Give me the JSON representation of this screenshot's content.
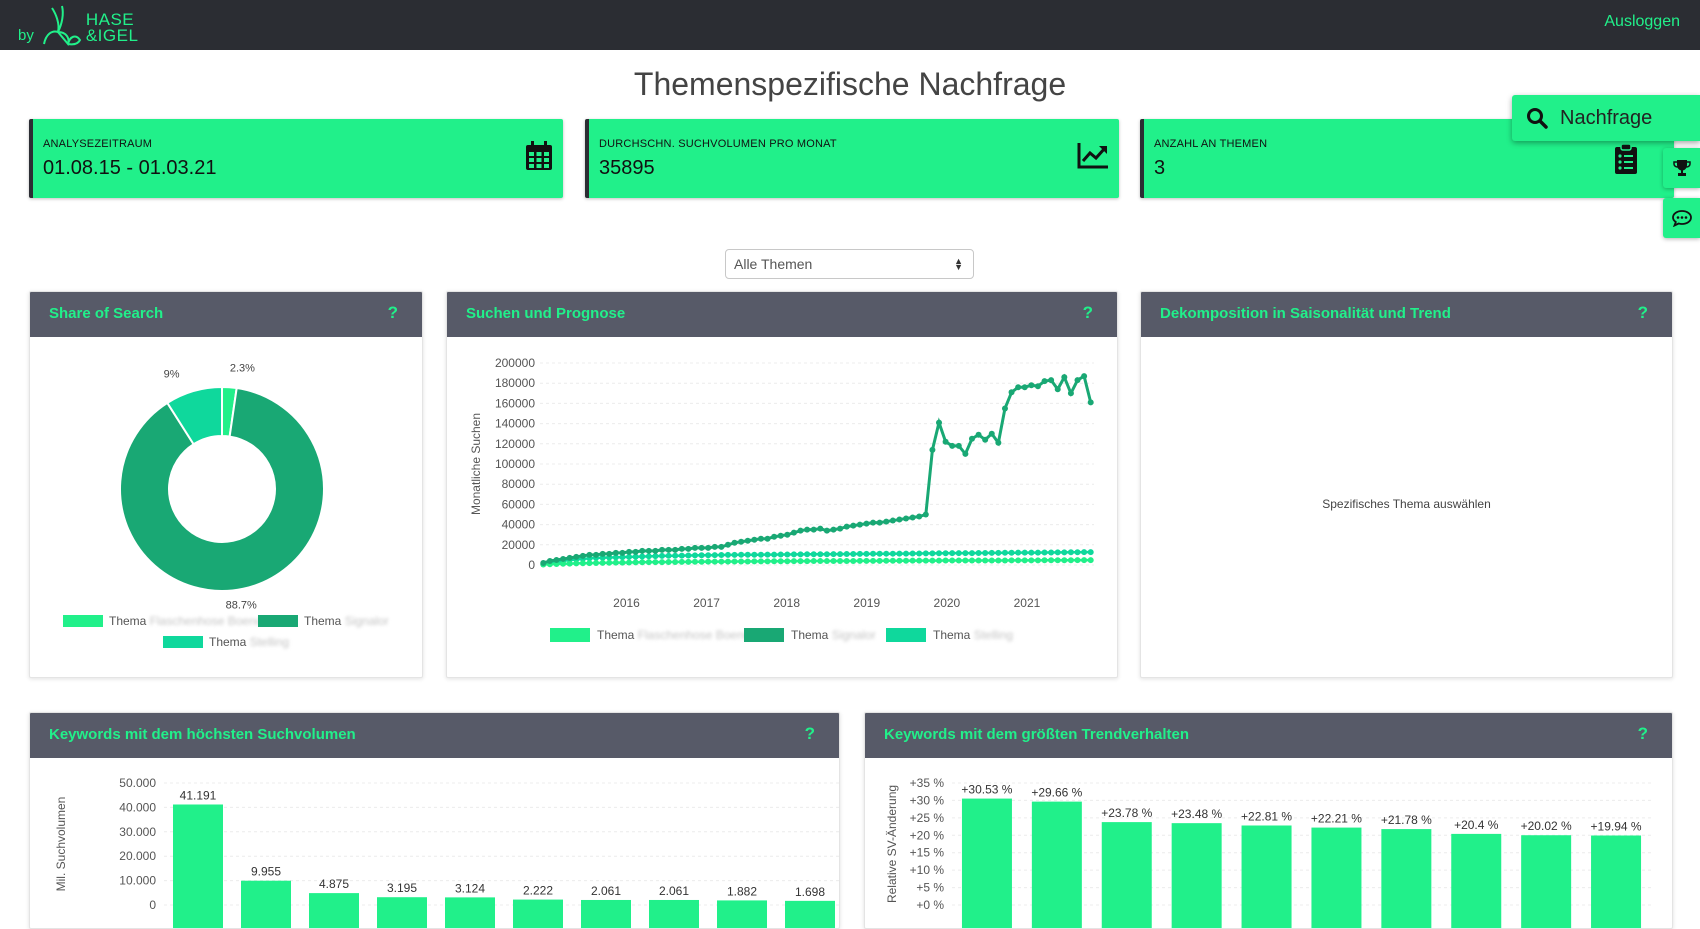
{
  "header": {
    "by": "by",
    "brand_line1": "HASE",
    "brand_line2": "&IGEL",
    "logout": "Ausloggen"
  },
  "page_title": "Themenspezifische Nachfrage",
  "kpis": [
    {
      "label": "ANALYSEZEITRAUM",
      "value": "01.08.15 - 01.03.21",
      "icon": "calendar-icon"
    },
    {
      "label": "DURCHSCHN. SUCHVOLUMEN PRO MONAT",
      "value": "35895",
      "icon": "chart-line-icon"
    },
    {
      "label": "ANZAHL AN THEMEN",
      "value": "3",
      "icon": "clipboard-list-icon"
    }
  ],
  "search_pill": {
    "label": "Nachfrage",
    "icon": "search-icon"
  },
  "side_buttons": [
    "trophy-icon",
    "chat-icon"
  ],
  "filter": {
    "selected": "Alle Themen"
  },
  "panels": {
    "share": {
      "title": "Share of Search",
      "help": "?"
    },
    "forecast": {
      "title": "Suchen und Prognose",
      "help": "?"
    },
    "decomp": {
      "title": "Dekomposition in Saisonalität und Trend",
      "help": "?",
      "placeholder": "Spezifisches Thema auswählen"
    },
    "top_volume": {
      "title": "Keywords mit dem höchsten Suchvolumen",
      "help": "?"
    },
    "top_trend": {
      "title": "Keywords mit dem größten Trendverhalten",
      "help": "?"
    }
  },
  "colors": {
    "accent": "#21f08a",
    "dark": "#2b2d33",
    "panel_header": "#575a68",
    "series1": "#21f08a",
    "series2": "#19a874",
    "series3": "#0fd89c"
  },
  "chart_data": [
    {
      "id": "share",
      "type": "pie",
      "title": "Share of Search",
      "categories": [
        "Thema Flaschenhose Boeno",
        "Thema Signalor",
        "Thema Stelling"
      ],
      "legend_prefix": "Thema",
      "legend_names": [
        "Flaschenhose Boeno",
        "Signalor",
        "Stelling"
      ],
      "values": [
        2.3,
        88.7,
        9.0
      ],
      "value_labels": [
        "2.3%",
        "88.7%",
        "9%"
      ]
    },
    {
      "id": "forecast",
      "type": "line",
      "title": "Suchen und Prognose",
      "ylabel": "Monatliche Suchen",
      "ylim": [
        0,
        200000
      ],
      "yticks": [
        "200000",
        "180000",
        "160000",
        "140000",
        "120000",
        "100000",
        "80000",
        "60000",
        "40000",
        "20000",
        "0"
      ],
      "xlim": [
        2015.0,
        2021.917
      ],
      "xticks": [
        "2016",
        "2017",
        "2018",
        "2019",
        "2020",
        "2021"
      ],
      "legend_prefix": "Thema",
      "legend_names": [
        "Flaschenhose Boeno",
        "Signalor",
        "Stelling"
      ],
      "series": [
        {
          "name": "Thema Flaschenhose Boeno",
          "values": [
            500,
            800,
            1000,
            1200,
            1400,
            1600,
            1700,
            1900,
            2000,
            2100,
            2200,
            2300,
            2400,
            2500,
            2600,
            2700,
            2800,
            2800,
            2900,
            3000,
            3000,
            3100,
            3100,
            3200,
            3200,
            3300,
            3300,
            3400,
            3400,
            3500,
            3500,
            3500,
            3600,
            3600,
            3600,
            3700,
            3700,
            3700,
            3800,
            3800,
            3800,
            3900,
            3900,
            3900,
            4000,
            4000,
            4000,
            4000,
            4100,
            4100,
            4100,
            4100,
            4200,
            4200,
            4200,
            4200,
            4300,
            4300,
            4300,
            4300,
            4300,
            4400,
            4400,
            4400,
            4400,
            4400,
            4500,
            4500,
            4500,
            4500,
            4500,
            4600,
            4600,
            4600,
            4600,
            4600,
            4700,
            4700,
            4700,
            4700,
            4700,
            4800,
            4800,
            4800
          ]
        },
        {
          "name": "Thema Signalor",
          "values": [
            2000,
            4000,
            5000,
            6000,
            7000,
            8000,
            9000,
            10000,
            10000,
            11000,
            11000,
            12000,
            12000,
            13000,
            13000,
            14000,
            14000,
            14000,
            15000,
            15000,
            15000,
            16000,
            16000,
            17000,
            17000,
            17000,
            18000,
            18000,
            20000,
            22000,
            23000,
            24000,
            25000,
            26000,
            26000,
            28000,
            29000,
            30000,
            32000,
            34000,
            35000,
            35000,
            36000,
            34000,
            35000,
            36000,
            38000,
            39000,
            40000,
            41000,
            42000,
            42000,
            43000,
            44000,
            45000,
            46000,
            47000,
            48000,
            50000,
            114000,
            141000,
            122000,
            118000,
            118000,
            110000,
            125000,
            129000,
            124000,
            130000,
            121000,
            155000,
            171000,
            176000,
            176000,
            178000,
            177000,
            182000,
            183000,
            174000,
            186000,
            170000,
            183000,
            187000,
            161000
          ]
        },
        {
          "name": "Thema Stelling",
          "values": [
            1000,
            2000,
            3000,
            4000,
            5000,
            5500,
            6000,
            6500,
            7000,
            7200,
            7400,
            7600,
            7800,
            8000,
            8200,
            8400,
            8600,
            8800,
            9000,
            9100,
            9200,
            9300,
            9400,
            9500,
            9600,
            9700,
            9800,
            9900,
            10000,
            10000,
            10100,
            10100,
            10200,
            10200,
            10300,
            10300,
            10400,
            10400,
            10500,
            10500,
            10600,
            10600,
            10700,
            10700,
            10800,
            10800,
            10900,
            10900,
            11000,
            11000,
            11100,
            11100,
            11200,
            11200,
            11300,
            11300,
            11400,
            11400,
            11500,
            11500,
            11600,
            11600,
            11700,
            11700,
            11800,
            11800,
            11900,
            11900,
            12000,
            12000,
            12100,
            12100,
            12200,
            12200,
            12300,
            12300,
            12400,
            12400,
            12500,
            12500,
            12600,
            12600,
            12700,
            12700
          ]
        }
      ]
    },
    {
      "id": "top_volume",
      "type": "bar",
      "title": "Keywords mit dem höchsten Suchvolumen",
      "ylabel": "Mil. Suchvolumen",
      "ylim": [
        0,
        50000
      ],
      "yticks": [
        "50.000",
        "40.000",
        "30.000",
        "20.000",
        "10.000",
        "0"
      ],
      "values": [
        41191,
        9955,
        4875,
        3195,
        3124,
        2222,
        2061,
        2061,
        1882,
        1698
      ],
      "value_labels": [
        "41.191",
        "9.955",
        "4.875",
        "3.195",
        "3.124",
        "2.222",
        "2.061",
        "2.061",
        "1.882",
        "1.698"
      ]
    },
    {
      "id": "top_trend",
      "type": "bar",
      "title": "Keywords mit dem größten Trendverhalten",
      "ylabel": "Relative SV-Änderung",
      "ylim": [
        0,
        35
      ],
      "yticks": [
        "+35 %",
        "+30 %",
        "+25 %",
        "+20 %",
        "+15 %",
        "+10 %",
        "+5 %",
        "+0 %"
      ],
      "values": [
        30.53,
        29.66,
        23.78,
        23.48,
        22.81,
        22.21,
        21.78,
        20.4,
        20.02,
        19.94
      ],
      "value_labels": [
        "+30.53 %",
        "+29.66 %",
        "+23.78 %",
        "+23.48 %",
        "+22.81 %",
        "+22.21 %",
        "+21.78 %",
        "+20.4 %",
        "+20.02 %",
        "+19.94 %"
      ]
    }
  ]
}
